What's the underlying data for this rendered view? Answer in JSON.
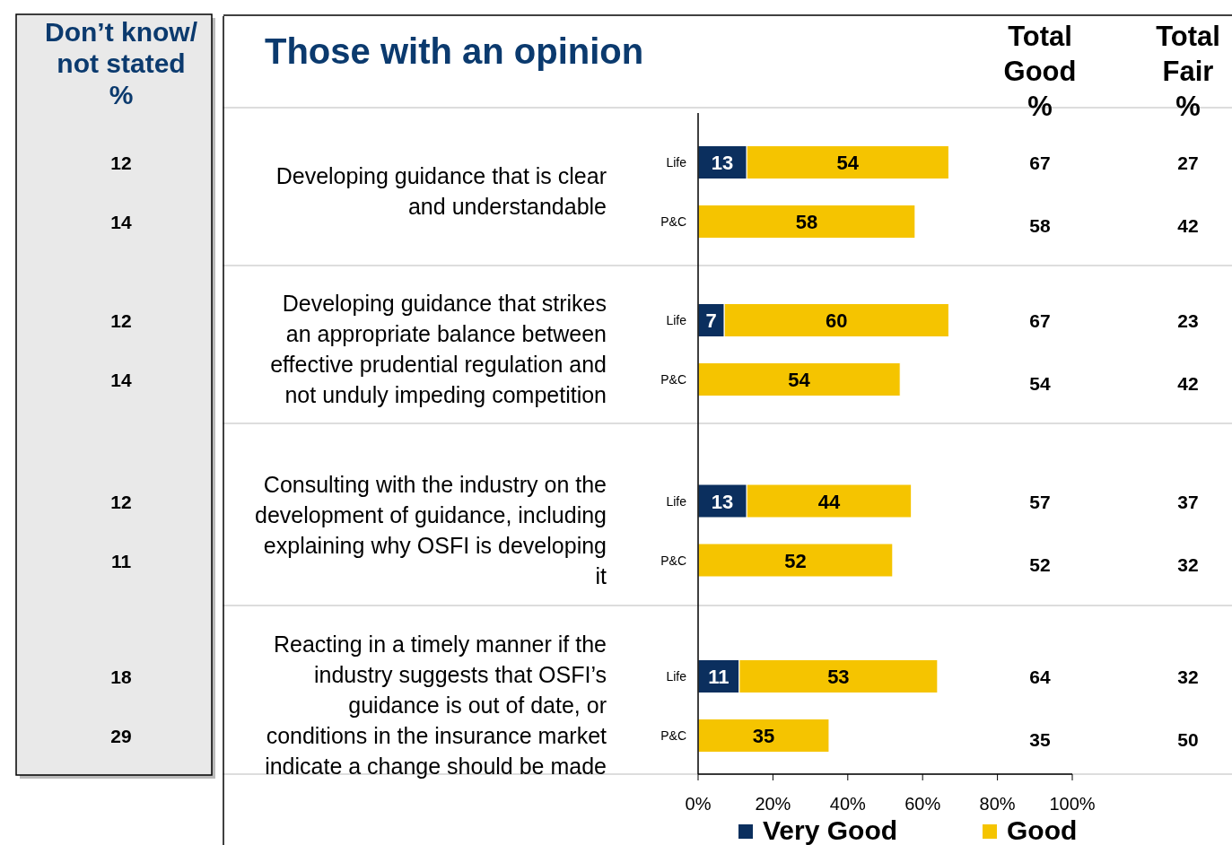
{
  "chart_data": [
    {
      "type": "bar",
      "orientation": "horizontal",
      "stacked": true,
      "title": "Those with an opinion",
      "categories": [
        "Life",
        "P&C",
        "Life",
        "P&C",
        "Life",
        "P&C",
        "Life",
        "P&C"
      ],
      "series": [
        {
          "name": "Very Good",
          "color": "#0b2f5e",
          "values": [
            13,
            null,
            7,
            null,
            13,
            null,
            11,
            null
          ]
        },
        {
          "name": "Good",
          "color": "#f5c400",
          "values": [
            54,
            58,
            60,
            54,
            44,
            52,
            53,
            35
          ]
        }
      ],
      "data_labels": true,
      "xlim": [
        0,
        100
      ],
      "xticks": [
        {
          "value": 0,
          "label": "0%"
        },
        {
          "value": 20,
          "label": "20%"
        },
        {
          "value": 40,
          "label": "40%"
        },
        {
          "value": 60,
          "label": "60%"
        },
        {
          "value": 80,
          "label": "80%"
        },
        {
          "value": 100,
          "label": "100%"
        }
      ],
      "legend": "bottom",
      "annotations": [
        "Developing guidance that is clear\nand understandable",
        "Developing guidance that strikes\nan appropriate balance between\neffective prudential regulation and\nnot unduly impeding competition",
        "Consulting with the industry on the\ndevelopment of guidance, including\nexplaining why OSFI is developing\nit",
        "Reacting in a timely manner if the\nindustry suggests that OSFI’s\nguidance is out of date, or\nconditions in the insurance market\nindicate a change should be made"
      ]
    },
    {
      "type": "other",
      "title": "Don’t know/\nnot stated\n%",
      "annotations": [
        "12",
        "14",
        "12",
        "14",
        "12",
        "11",
        "18",
        "29"
      ]
    },
    {
      "type": "other",
      "title": "Total\nGood\n%",
      "annotations": [
        "67",
        "58",
        "67",
        "54",
        "57",
        "52",
        "64",
        "35"
      ]
    },
    {
      "type": "other",
      "title": "Total\nFair\n%",
      "annotations": [
        "27",
        "42",
        "23",
        "42",
        "37",
        "32",
        "32",
        "50"
      ]
    }
  ]
}
